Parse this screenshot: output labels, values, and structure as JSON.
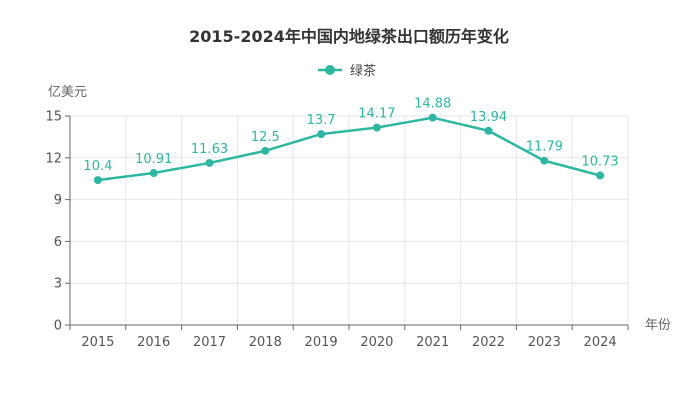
{
  "chart_data": {
    "type": "line",
    "title": "2015-2024年中国内地绿茶出口额历年变化",
    "xlabel": "年份",
    "ylabel": "亿美元",
    "categories": [
      "2015",
      "2016",
      "2017",
      "2018",
      "2019",
      "2020",
      "2021",
      "2022",
      "2023",
      "2024"
    ],
    "series": [
      {
        "name": "绿茶",
        "values": [
          10.4,
          10.91,
          11.63,
          12.5,
          13.7,
          14.17,
          14.88,
          13.94,
          11.79,
          10.73
        ],
        "color": "#2db7a0"
      }
    ],
    "ylim": [
      0,
      15
    ],
    "yticks": [
      0,
      3,
      6,
      9,
      12,
      15
    ],
    "grid": true,
    "legend": "top-center",
    "data_labels": true
  }
}
